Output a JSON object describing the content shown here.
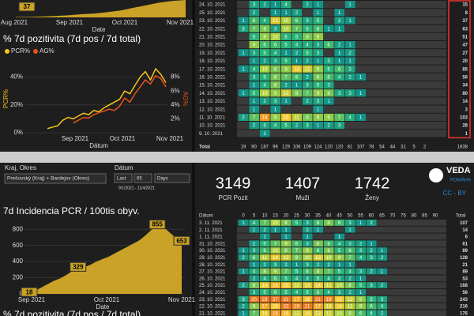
{
  "top_left": {
    "mini": {
      "labels": [
        "Aug 2021",
        "Sep 2021",
        "Oct 2021",
        "Nov 2021"
      ],
      "axis_label": "Date",
      "value_label": "37",
      "values": [
        2,
        3,
        5,
        8,
        12,
        18,
        22,
        30,
        40,
        55,
        70,
        85,
        95,
        100
      ]
    },
    "chart": {
      "type": "line",
      "title": "% 7d pozitivita (7d pos / 7d total)",
      "ylabel": "PCR%",
      "y2label": "AG%",
      "xlabel": "Dátum",
      "xticks": [
        "Sep 2021",
        "Oct 2021",
        "Nov 2021"
      ],
      "ylim": [
        0,
        50
      ],
      "yticks": [
        {
          "value": 0,
          "label": "0%"
        },
        {
          "value": 20,
          "label": "20%"
        },
        {
          "value": 40,
          "label": "40%"
        }
      ],
      "y2lim": [
        0,
        10
      ],
      "y2ticks": [
        {
          "value": 2,
          "label": "2%"
        },
        {
          "value": 4,
          "label": "4%"
        },
        {
          "value": 6,
          "label": "6%"
        },
        {
          "value": 8,
          "label": "8%"
        }
      ],
      "series": [
        {
          "name": "PCR%",
          "color": "#f5c518",
          "values": [
            3,
            4,
            5,
            9,
            11,
            10,
            12,
            14,
            13,
            16,
            15,
            18,
            20,
            22,
            24,
            30,
            28,
            34,
            40,
            44,
            38,
            46,
            42,
            36
          ]
        },
        {
          "name": "AG%",
          "color": "#e8531c",
          "axis": "y2",
          "values": [
            null,
            null,
            null,
            null,
            null,
            1.4,
            1.8,
            2.2,
            2.1,
            2.6,
            2.9,
            3.1,
            3.4,
            3.2,
            3.8,
            5.0,
            4.4,
            5.6,
            6.6,
            7.6,
            7.0,
            8.2,
            7.8,
            6.6
          ]
        }
      ]
    }
  },
  "top_table": {
    "rows": [
      {
        "date": "24. 10. 2021",
        "cells": [
          null,
          3,
          2,
          1,
          4,
          null,
          2,
          1,
          null,
          null,
          1,
          null
        ],
        "total": "15"
      },
      {
        "date": "25. 10. 2021",
        "cells": [
          null,
          2,
          null,
          1,
          1,
          2,
          null,
          1,
          null,
          1,
          null,
          null
        ],
        "total": "8"
      },
      {
        "date": "23. 10. 2021",
        "cells": [
          1,
          6,
          4,
          13,
          10,
          6,
          3,
          5,
          null,
          2,
          1,
          null
        ],
        "total": "37"
      },
      {
        "date": "22. 10. 2021",
        "cells": [
          3,
          7,
          8,
          3,
          10,
          7,
          5,
          6,
          1,
          1,
          null,
          null
        ],
        "total": "63"
      },
      {
        "date": "21. 10. 2021",
        "cells": [
          null,
          5,
          9,
          10,
          5,
          5,
          8,
          9,
          null,
          null,
          null,
          null
        ],
        "total": "51"
      },
      {
        "date": "20. 10. 2021",
        "cells": [
          null,
          9,
          6,
          6,
          5,
          4,
          4,
          3,
          6,
          2,
          1,
          null
        ],
        "total": "47"
      },
      {
        "date": "19. 10. 2021",
        "cells": [
          1,
          3,
          5,
          4,
          1,
          2,
          5,
          3,
          null,
          1,
          2,
          null
        ],
        "total": "27"
      },
      {
        "date": "18. 10. 2021",
        "cells": [
          null,
          1,
          2,
          3,
          5,
          1,
          2,
          1,
          3,
          1,
          1,
          null
        ],
        "total": "20"
      },
      {
        "date": "17. 10. 2021",
        "cells": [
          1,
          4,
          10,
          8,
          9,
          14,
          12,
          9,
          5,
          6,
          3,
          null
        ],
        "total": "85"
      },
      {
        "date": "16. 10. 2021",
        "cells": [
          null,
          3,
          5,
          8,
          7,
          6,
          2,
          8,
          6,
          4,
          2,
          1
        ],
        "total": "56"
      },
      {
        "date": "15. 10. 2021",
        "cells": [
          null,
          1,
          4,
          8,
          2,
          1,
          3,
          5,
          3,
          null,
          null,
          null
        ],
        "total": "34"
      },
      {
        "date": "14. 10. 2021",
        "cells": [
          1,
          5,
          10,
          9,
          12,
          8,
          7,
          9,
          8,
          3,
          3,
          1
        ],
        "total": "80"
      },
      {
        "date": "13. 10. 2021",
        "cells": [
          null,
          1,
          2,
          3,
          1,
          null,
          2,
          3,
          1,
          null,
          null,
          null
        ],
        "total": "14"
      },
      {
        "date": "12. 10. 2021",
        "cells": [
          null,
          1,
          null,
          1,
          null,
          null,
          null,
          1,
          null,
          null,
          null,
          null
        ],
        "total": "3"
      },
      {
        "date": "11. 10. 2021",
        "cells": [
          2,
          7,
          18,
          9,
          15,
          11,
          8,
          9,
          9,
          7,
          4,
          1
        ],
        "total": "103"
      },
      {
        "date": "10. 10. 2021",
        "cells": [
          null,
          2,
          3,
          4,
          5,
          2,
          3,
          1,
          2,
          3,
          null,
          null
        ],
        "total": "28"
      },
      {
        "date": "9. 10. 2021",
        "cells": [
          null,
          null,
          1,
          null,
          null,
          null,
          null,
          null,
          null,
          null,
          null,
          null
        ],
        "total": "1"
      }
    ],
    "total_label": "Total",
    "totals": [
      "19",
      "90",
      "187",
      "96",
      "129",
      "106",
      "109",
      "124",
      "120",
      "120",
      "81",
      "107",
      "78",
      "54",
      "44",
      "31",
      "5",
      "2",
      "1838"
    ]
  },
  "controls": {
    "region_label": "Kraj, Okres",
    "region_value": "Prešovský (Kraj) + Bardejov (Okres)",
    "date_label": "Dátum",
    "mode": "Last",
    "count": "65",
    "unit": "Days",
    "range": "9/1/2021 - 11/4/2021"
  },
  "stats": [
    {
      "value": "3149",
      "label": "PCR Pozit"
    },
    {
      "value": "1407",
      "label": "Muži"
    },
    {
      "value": "1742",
      "label": "Ženy"
    }
  ],
  "logo": {
    "name": "VEDA",
    "sub": "POMÁHA",
    "license": "CC - BY"
  },
  "bottom_chart": {
    "type": "area",
    "title": "7d Incidencia PCR / 100tis obyv.",
    "xlabel": "Date",
    "xticks": [
      "Sep 2021",
      "Oct 2021",
      "Nov 2021"
    ],
    "ylim": [
      0,
      900
    ],
    "yticks": [
      0,
      200,
      400,
      600,
      800
    ],
    "color": "#c9a227",
    "values": [
      18,
      40,
      80,
      120,
      160,
      190,
      230,
      280,
      329,
      330,
      360,
      400,
      430,
      460,
      500,
      540,
      580,
      620,
      660,
      720,
      790,
      855,
      830,
      760,
      700,
      653
    ],
    "value_labels": [
      {
        "index": 0,
        "text": "18"
      },
      {
        "index": 8,
        "text": "329"
      },
      {
        "index": 21,
        "text": "855"
      },
      {
        "index": 25,
        "text": "653"
      }
    ],
    "next_title": "% 7d pozitivita (7d pos / 7d total)"
  },
  "bottom_table": {
    "header": [
      "Dátum",
      "0",
      "5",
      "10",
      "15",
      "20",
      "25",
      "30",
      "35",
      "40",
      "45",
      "50",
      "55",
      "60",
      "65",
      "70",
      "75",
      "80",
      "85",
      "90",
      "Total"
    ],
    "rows": [
      {
        "date": "3. 11. 2021",
        "cells": [
          1,
          4,
          7,
          10,
          8,
          5,
          3,
          6,
          8,
          6,
          3,
          1,
          2,
          null
        ],
        "total": "107"
      },
      {
        "date": "2. 11. 2021",
        "cells": [
          null,
          1,
          2,
          1,
          1,
          null,
          2,
          1,
          null,
          null,
          1,
          null,
          null,
          null
        ],
        "total": "14"
      },
      {
        "date": "1. 11. 2021",
        "cells": [
          null,
          null,
          1,
          null,
          1,
          null,
          1,
          null,
          null,
          1,
          null,
          null,
          null,
          null
        ],
        "total": "6"
      },
      {
        "date": "31. 10. 2021",
        "cells": [
          null,
          2,
          5,
          7,
          9,
          6,
          3,
          8,
          6,
          4,
          3,
          2,
          1,
          null
        ],
        "total": "61"
      },
      {
        "date": "30. 10. 2021",
        "cells": [
          1,
          3,
          6,
          10,
          8,
          7,
          9,
          6,
          8,
          5,
          6,
          3,
          2,
          1
        ],
        "total": "89"
      },
      {
        "date": "29. 10. 2021",
        "cells": [
          2,
          6,
          11,
          14,
          12,
          8,
          10,
          13,
          10,
          9,
          7,
          4,
          3,
          2
        ],
        "total": "128"
      },
      {
        "date": "28. 10. 2021",
        "cells": [
          null,
          1,
          2,
          3,
          2,
          1,
          3,
          2,
          2,
          1,
          1,
          null,
          null,
          null
        ],
        "total": "21"
      },
      {
        "date": "27. 10. 2021",
        "cells": [
          1,
          4,
          8,
          9,
          7,
          5,
          6,
          8,
          7,
          5,
          4,
          3,
          2,
          1
        ],
        "total": "89"
      },
      {
        "date": "26. 10. 2021",
        "cells": [
          null,
          2,
          4,
          6,
          5,
          4,
          3,
          5,
          4,
          3,
          2,
          1,
          null,
          null
        ],
        "total": "53"
      },
      {
        "date": "25. 10. 2021",
        "cells": [
          2,
          8,
          14,
          16,
          15,
          12,
          13,
          14,
          12,
          10,
          8,
          5,
          3,
          2
        ],
        "total": "168"
      },
      {
        "date": "24. 10. 2021",
        "cells": [
          null,
          3,
          5,
          6,
          5,
          4,
          5,
          6,
          4,
          3,
          2,
          1,
          null,
          null
        ],
        "total": "56"
      },
      {
        "date": "23. 10. 2021",
        "cells": [
          3,
          20,
          23,
          37,
          21,
          17,
          16,
          21,
          19,
          15,
          12,
          9,
          5,
          3
        ],
        "total": "243"
      },
      {
        "date": "22. 10. 2021",
        "cells": [
          2,
          9,
          17,
          15,
          22,
          19,
          21,
          17,
          13,
          14,
          11,
          9,
          6,
          4
        ],
        "total": "216"
      },
      {
        "date": "21. 10. 2021",
        "cells": [
          1,
          7,
          14,
          18,
          16,
          12,
          14,
          13,
          12,
          10,
          9,
          6,
          4,
          2
        ],
        "total": "176"
      }
    ]
  }
}
